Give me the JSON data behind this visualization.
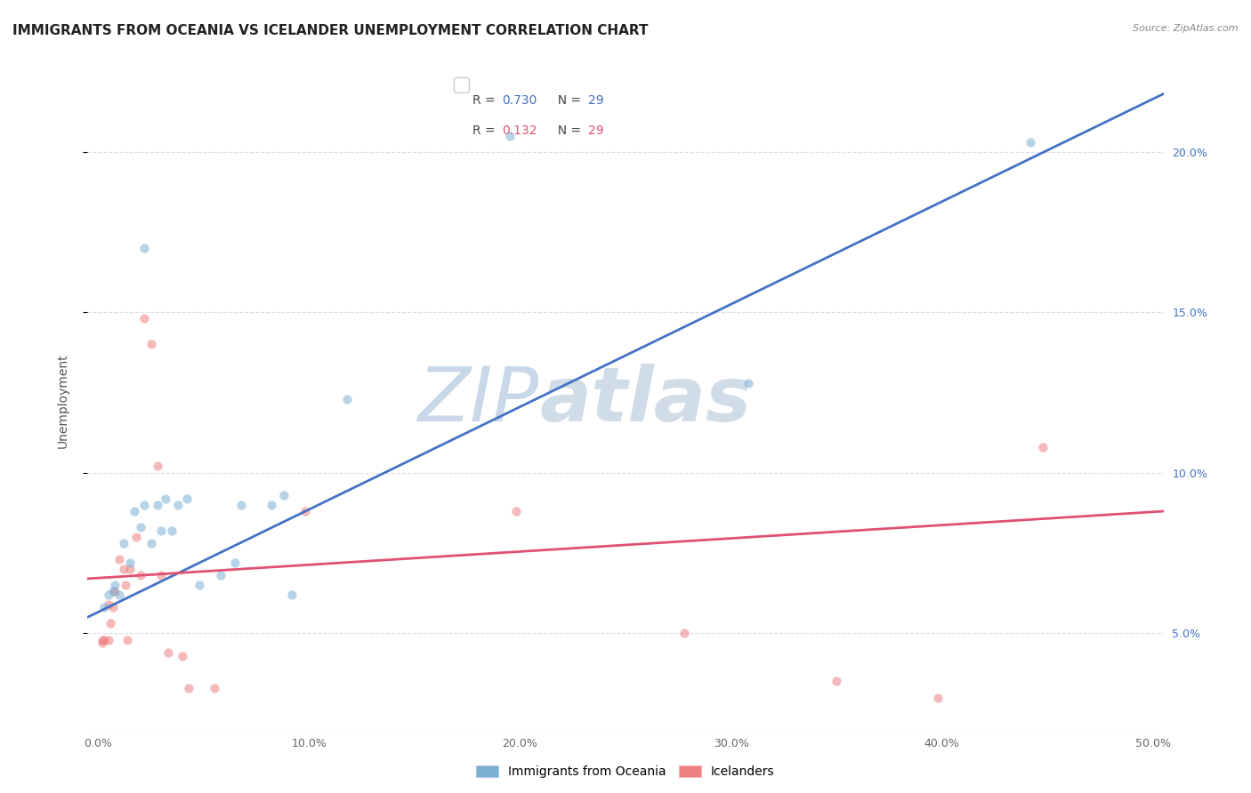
{
  "title": "IMMIGRANTS FROM OCEANIA VS ICELANDER UNEMPLOYMENT CORRELATION CHART",
  "source": "Source: ZipAtlas.com",
  "xlabel": "",
  "ylabel": "Unemployment",
  "xlim": [
    -0.005,
    0.505
  ],
  "ylim": [
    0.02,
    0.225
  ],
  "yticks": [
    0.05,
    0.1,
    0.15,
    0.2
  ],
  "ytick_labels": [
    "5.0%",
    "10.0%",
    "15.0%",
    "20.0%"
  ],
  "xticks": [
    0.0,
    0.1,
    0.2,
    0.3,
    0.4,
    0.5
  ],
  "xtick_labels": [
    "0.0%",
    "10.0%",
    "20.0%",
    "30.0%",
    "40.0%",
    "50.0%"
  ],
  "legend_label1": "R =  0.730",
  "legend_n1": "N = 29",
  "legend_label2": "R =  0.132",
  "legend_n2": "N = 29",
  "watermark_zip": "ZIP",
  "watermark_atlas": "atlas",
  "blue_scatter_x": [
    0.022,
    0.005,
    0.003,
    0.007,
    0.008,
    0.01,
    0.012,
    0.015,
    0.017,
    0.02,
    0.022,
    0.025,
    0.028,
    0.03,
    0.032,
    0.035,
    0.038,
    0.042,
    0.048,
    0.058,
    0.065,
    0.068,
    0.082,
    0.088,
    0.092,
    0.118,
    0.195,
    0.308,
    0.442
  ],
  "blue_scatter_y": [
    0.17,
    0.062,
    0.058,
    0.063,
    0.065,
    0.062,
    0.078,
    0.072,
    0.088,
    0.083,
    0.09,
    0.078,
    0.09,
    0.082,
    0.092,
    0.082,
    0.09,
    0.092,
    0.065,
    0.068,
    0.072,
    0.09,
    0.09,
    0.093,
    0.062,
    0.123,
    0.205,
    0.128,
    0.203
  ],
  "pink_scatter_x": [
    0.002,
    0.003,
    0.005,
    0.006,
    0.007,
    0.008,
    0.01,
    0.012,
    0.013,
    0.015,
    0.018,
    0.02,
    0.022,
    0.025,
    0.028,
    0.03,
    0.033,
    0.04,
    0.043,
    0.055,
    0.098,
    0.198,
    0.278,
    0.35,
    0.398,
    0.448,
    0.002,
    0.005,
    0.014
  ],
  "pink_scatter_y": [
    0.047,
    0.048,
    0.048,
    0.053,
    0.058,
    0.063,
    0.073,
    0.07,
    0.065,
    0.07,
    0.08,
    0.068,
    0.148,
    0.14,
    0.102,
    0.068,
    0.044,
    0.043,
    0.033,
    0.033,
    0.088,
    0.088,
    0.05,
    0.035,
    0.03,
    0.108,
    0.048,
    0.059,
    0.048
  ],
  "blue_line_x": [
    -0.005,
    0.505
  ],
  "blue_line_y": [
    0.055,
    0.218
  ],
  "pink_line_x": [
    -0.005,
    0.505
  ],
  "pink_line_y": [
    0.067,
    0.088
  ],
  "blue_color": "#7BAFD4",
  "pink_color": "#F08080",
  "blue_line_color": "#4472C4",
  "pink_line_color": "#E05070",
  "background_color": "#FFFFFF",
  "grid_color": "#DDDDEE",
  "title_fontsize": 11,
  "axis_label_fontsize": 10,
  "tick_fontsize": 9,
  "tick_color_blue": "#4472C4",
  "tick_color_x": "#666666",
  "watermark_color_zip": "#C8D8E8",
  "watermark_color_atlas": "#D0DCE8",
  "scatter_size": 55,
  "scatter_alpha": 0.55,
  "legend_R_color_blue": "#4472C4",
  "legend_R_color_pink": "#E05070",
  "legend_N_color": "#444444"
}
